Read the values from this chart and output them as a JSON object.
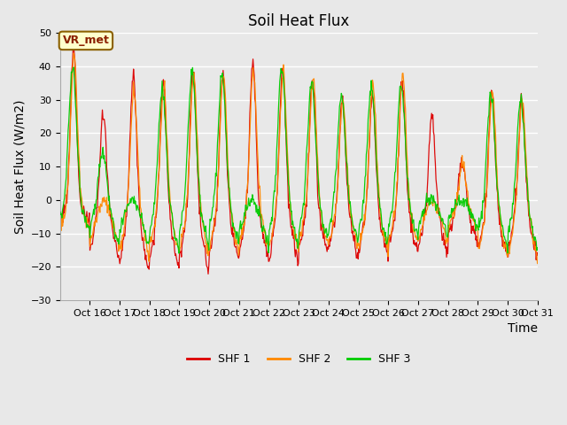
{
  "title": "Soil Heat Flux",
  "ylabel": "Soil Heat Flux (W/m2)",
  "xlabel": "Time",
  "ylim": [
    -30,
    50
  ],
  "yticks": [
    -30,
    -20,
    -10,
    0,
    10,
    20,
    30,
    40,
    50
  ],
  "colors": {
    "SHF1": "#dd0000",
    "SHF2": "#ff8800",
    "SHF3": "#00cc00"
  },
  "legend_label": "VR_met",
  "series_labels": [
    "SHF 1",
    "SHF 2",
    "SHF 3"
  ],
  "fig_bg_color": "#e8e8e8",
  "plot_bg_color": "#e8e8e8",
  "grid_color": "#ffffff",
  "n_days": 16,
  "pts_per_day": 48,
  "title_fontsize": 12,
  "axis_label_fontsize": 10,
  "tick_fontsize": 8,
  "day_peaks_1": [
    45,
    26,
    38,
    35,
    39,
    38,
    41,
    40,
    36,
    30,
    32,
    36,
    25,
    12,
    33,
    31
  ],
  "night_troughs_1": [
    -8,
    -22,
    -27,
    -26,
    -26,
    -22,
    -22,
    -23,
    -20,
    -21,
    -22,
    -20,
    -20,
    -15,
    -21,
    -21
  ],
  "day_peaks_2": [
    44,
    0,
    33,
    33,
    38,
    38,
    39,
    38,
    37,
    30,
    35,
    38,
    0,
    11,
    32,
    30
  ],
  "night_troughs_2": [
    -12,
    -20,
    -23,
    -22,
    -22,
    -21,
    -20,
    -22,
    -19,
    -19,
    -21,
    -18,
    -18,
    -13,
    -24,
    -24
  ],
  "day_peaks_3": [
    40,
    14,
    0,
    33,
    38,
    37,
    0,
    40,
    35,
    31,
    34,
    35,
    0,
    0,
    32,
    30
  ],
  "night_troughs_3": [
    -12,
    -20,
    -21,
    -22,
    -21,
    -20,
    -21,
    -20,
    -18,
    -18,
    -20,
    -17,
    -17,
    -13,
    -22,
    -22
  ],
  "xtick_start_day": 15,
  "xtick_end_day": 31
}
